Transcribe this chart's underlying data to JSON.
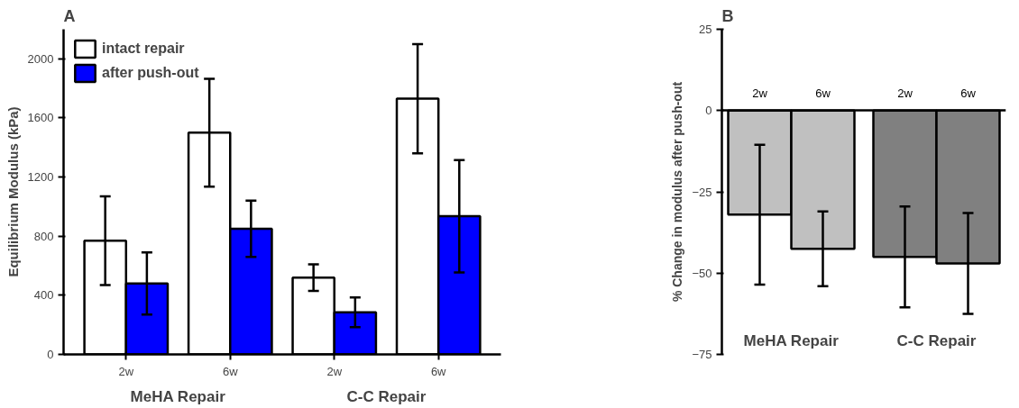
{
  "chart_data": [
    {
      "type": "bar",
      "title": "A",
      "ylabel": "Equilibrium Modulus (kPa)",
      "categories": [
        "2w",
        "6w",
        "2w",
        "6w"
      ],
      "series": [
        {
          "name": "intact repair",
          "color": "#ffffff",
          "values": [
            770,
            1500,
            520,
            1730
          ],
          "errors": [
            300,
            365,
            90,
            370
          ]
        },
        {
          "name": "after push-out",
          "color": "#0000ff",
          "values": [
            480,
            850,
            285,
            935
          ],
          "errors": [
            210,
            190,
            100,
            380
          ]
        }
      ],
      "ylim": [
        0,
        2200
      ],
      "yticks": [
        0,
        400,
        800,
        1200,
        1600,
        2000
      ],
      "legend": "top left",
      "grid": false,
      "annotations": [
        "MeHA Repair",
        "C-C Repair"
      ]
    },
    {
      "type": "bar",
      "title": "B",
      "ylabel": "% Change in modulus after push-out",
      "categories": [
        "2w",
        "6w",
        "2w",
        "6w"
      ],
      "values": [
        -32,
        -42.5,
        -45,
        -47
      ],
      "errors": [
        21.5,
        11.5,
        15.5,
        15.5
      ],
      "colors": [
        "#c0c0c0",
        "#c0c0c0",
        "#808080",
        "#808080"
      ],
      "ylim": [
        -75,
        25
      ],
      "yticks": [
        25,
        0,
        -25,
        -50,
        -75
      ],
      "grid": false,
      "annotations": [
        "MeHA Repair",
        "C-C Repair"
      ]
    }
  ]
}
